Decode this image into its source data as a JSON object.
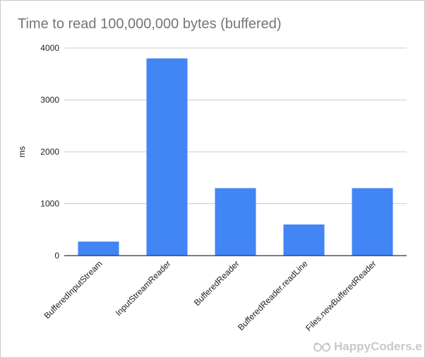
{
  "chart_data": {
    "type": "bar",
    "title": "Time to read 100,000,000 bytes (buffered)",
    "xlabel": "",
    "ylabel": "ms",
    "categories": [
      "BufferedInputStream",
      "InputStreamReader",
      "BufferedReader",
      "BufferedReader.readLine",
      "Files.newBufferedReader"
    ],
    "values": [
      270,
      3800,
      1300,
      600,
      1300
    ],
    "ylim": [
      0,
      4000
    ],
    "yticks": [
      0,
      1000,
      2000,
      3000,
      4000
    ],
    "ytick_labels": [
      "0",
      "1000",
      "2000",
      "3000",
      "4000"
    ],
    "grid": true,
    "legend": "none",
    "bar_color": "#4285f4",
    "grid_color": "#cccccc",
    "axis_color": "#333333",
    "title_color": "#757575"
  },
  "watermark": {
    "text": "HappyCoders.e",
    "icon": "glasses-icon",
    "color": "#c9c9c9"
  }
}
